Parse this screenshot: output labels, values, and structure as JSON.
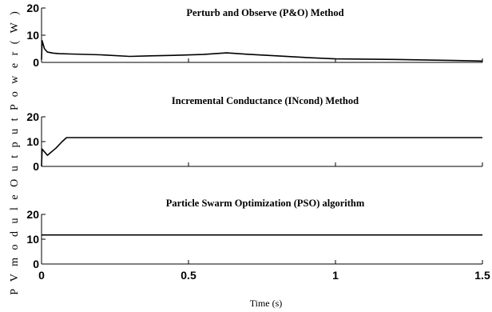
{
  "chart_data": {
    "type": "line",
    "ylabel": "P V  m o d u l e  O u t p u t  P o w e r  (  W  )",
    "xlabel": "Time (s)",
    "xlim": [
      0,
      1.5
    ],
    "x_ticks": [
      "0",
      "0.5",
      "1",
      "1.5"
    ],
    "grid": false,
    "colors": {
      "line": "#000000",
      "axes": "#000000"
    },
    "subplots": [
      {
        "title": "Perturb and Observe (P&O) Method",
        "ylim": [
          0,
          20
        ],
        "y_ticks": [
          "0",
          "10",
          "20"
        ],
        "series": [
          {
            "x": [
              0,
              0.002,
              0.01,
              0.02,
              0.04,
              0.06,
              0.1,
              0.2,
              0.3,
              0.37,
              0.45,
              0.55,
              0.63,
              0.7,
              0.8,
              0.9,
              1.0,
              1.1,
              1.2,
              1.3,
              1.4,
              1.5
            ],
            "y": [
              1,
              8,
              5,
              3.8,
              3.4,
              3.2,
              3.1,
              2.8,
              2.2,
              2.4,
              2.6,
              2.9,
              3.5,
              3.0,
              2.4,
              1.8,
              1.3,
              1.2,
              1.1,
              0.9,
              0.7,
              0.5
            ]
          }
        ]
      },
      {
        "title": "Incremental Conductance (INcond) Method",
        "ylim": [
          0,
          20
        ],
        "y_ticks": [
          "0",
          "10",
          "20"
        ],
        "series": [
          {
            "x": [
              0,
              0.002,
              0.02,
              0.05,
              0.07,
              0.085,
              0.1,
              0.5,
              1.0,
              1.5
            ],
            "y": [
              0,
              7,
              4.5,
              7.5,
              10,
              11.6,
              11.6,
              11.6,
              11.6,
              11.6
            ]
          }
        ]
      },
      {
        "title": "Particle Swarm Optimization (PSO) algorithm",
        "ylim": [
          0,
          20
        ],
        "y_ticks": [
          "0",
          "10",
          "20"
        ],
        "series": [
          {
            "x": [
              0,
              0.5,
              1.0,
              1.5
            ],
            "y": [
              11.7,
              11.7,
              11.7,
              11.7
            ]
          }
        ]
      }
    ]
  }
}
